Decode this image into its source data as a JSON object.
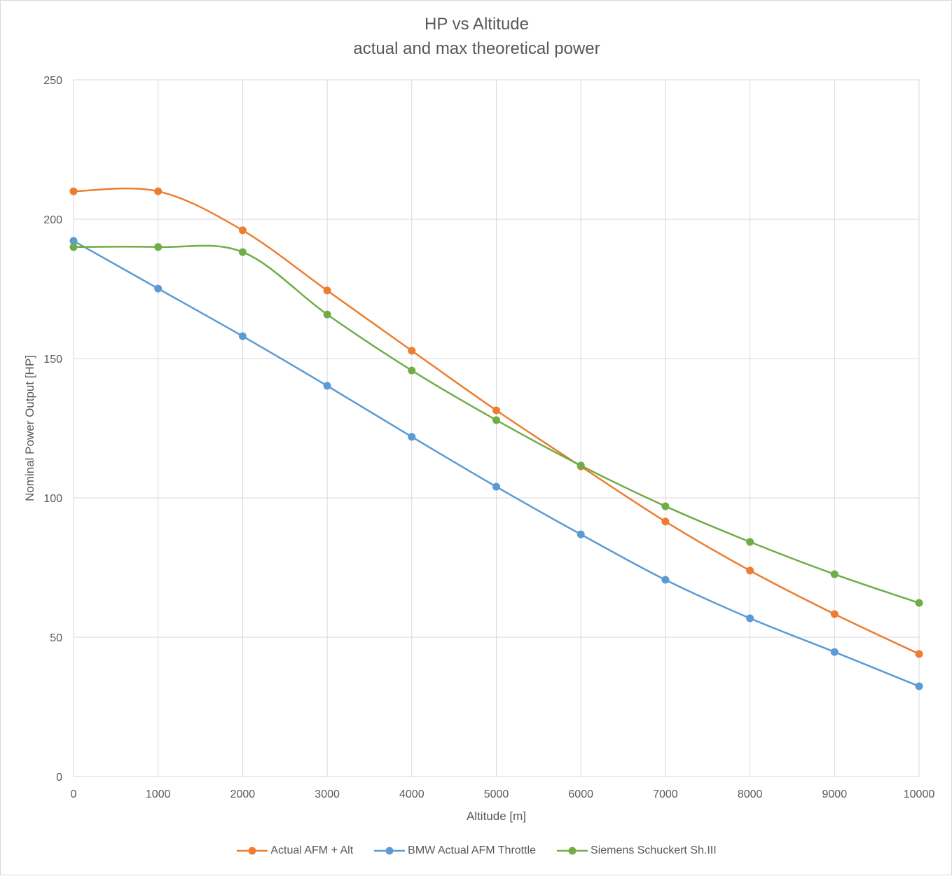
{
  "chart_data": {
    "type": "line",
    "title": "HP vs Altitude",
    "subtitle": "actual and max theoretical power",
    "xlabel": "Altitude [m]",
    "ylabel": "Nominal Power Output [HP]",
    "xlim": [
      0,
      10000
    ],
    "ylim": [
      0,
      250
    ],
    "x_ticks": [
      0,
      1000,
      2000,
      3000,
      4000,
      5000,
      6000,
      7000,
      8000,
      9000,
      10000
    ],
    "y_ticks": [
      0,
      50,
      100,
      150,
      200,
      250
    ],
    "grid": true,
    "smoothed": true,
    "legend_position": "bottom",
    "x": [
      0,
      1000,
      2000,
      3000,
      4000,
      5000,
      6000,
      7000,
      8000,
      9000,
      10000
    ],
    "series": [
      {
        "name": "Actual AFM + Alt",
        "color": "#ED7D31",
        "values": [
          210,
          210,
          196,
          174.4,
          152.8,
          131.4,
          111.3,
          91.5,
          73.9,
          58.3,
          44
        ]
      },
      {
        "name": "BMW Actual AFM Throttle",
        "color": "#5B9BD5",
        "values": [
          192.2,
          175.1,
          158,
          140.2,
          121.9,
          104,
          86.9,
          70.6,
          56.8,
          44.7,
          32.4
        ]
      },
      {
        "name": "Siemens Schuckert Sh.III",
        "color": "#70AD47",
        "values": [
          190,
          190,
          188.2,
          165.8,
          145.7,
          127.9,
          111.6,
          97,
          84.2,
          72.6,
          62.3
        ]
      }
    ]
  }
}
